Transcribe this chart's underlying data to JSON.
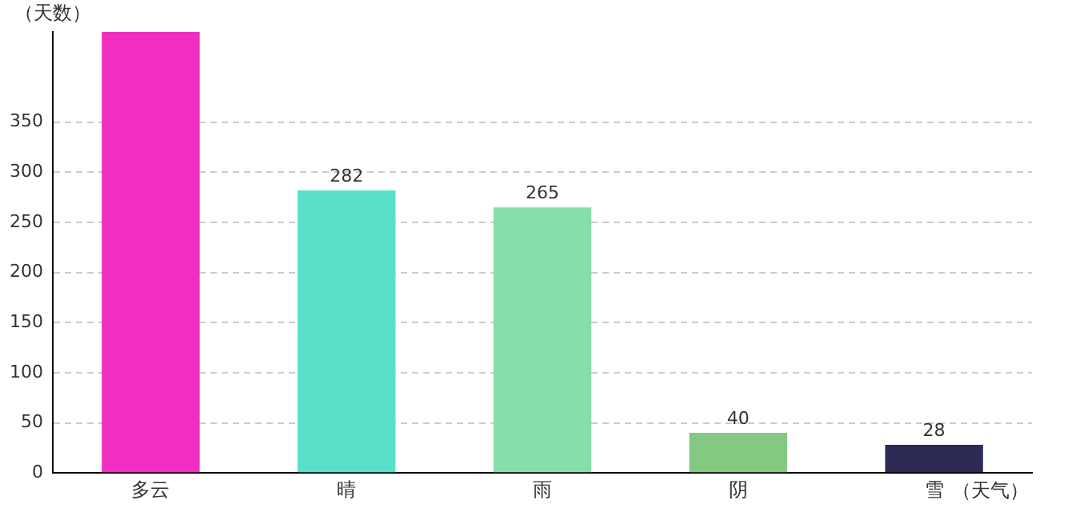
{
  "chart_data": {
    "type": "bar",
    "xlabel": "（天气）",
    "ylabel": "（天数）",
    "categories": [
      "多云",
      "晴",
      "雨",
      "阴",
      "雪"
    ],
    "values": [
      440,
      282,
      265,
      40,
      28
    ],
    "value_labels": [
      null,
      "282",
      "265",
      "40",
      "28"
    ],
    "colors": [
      "#f02fc2",
      "#58e0c8",
      "#86dfa8",
      "#83c982",
      "#2d2b55"
    ],
    "ylim": [
      0,
      440
    ],
    "yticks": [
      0,
      50,
      100,
      150,
      200,
      250,
      300,
      350
    ],
    "grid": "y",
    "legend": false
  }
}
